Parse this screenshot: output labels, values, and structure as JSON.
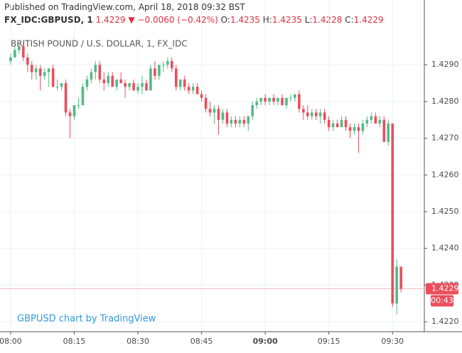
{
  "chart_data": {
    "type": "candlestick",
    "published": "Published on TradingView.com, April 18, 2018 09:32 BST",
    "symbol": "FX_IDC:GBPUSD, 1",
    "last_price": 1.4229,
    "change_arrow": "▼",
    "change": "−0.0060 (−0.42%)",
    "ohlc_labels": [
      "O:",
      "H:",
      "L:",
      "C:"
    ],
    "ohlc_values": [
      1.4235,
      1.4235,
      1.4228,
      1.4229
    ],
    "title": "BRITISH POUND / U.S. DOLLAR, 1, FX_IDC",
    "watermark": "GBPUSD chart by TradingView",
    "countdown": "00:43",
    "up_color": "#53b987",
    "down_color": "#eb4d5c",
    "last_line_color": "#f5b8bf",
    "grid": true,
    "xlim": [
      -2.5,
      97.5
    ],
    "xticks": [
      {
        "value": 0,
        "label": "08:00"
      },
      {
        "value": 15,
        "label": "08:15"
      },
      {
        "value": 30,
        "label": "08:30"
      },
      {
        "value": 45,
        "label": "08:45"
      },
      {
        "value": 60,
        "label": "09:00"
      },
      {
        "value": 75,
        "label": "09:15"
      },
      {
        "value": 90,
        "label": "09:30"
      }
    ],
    "ylim": [
      1.42173,
      1.43003
    ],
    "yticks": [
      {
        "value": 1.422,
        "label": "1.4220"
      },
      {
        "value": 1.423,
        "label": "1.4230"
      },
      {
        "value": 1.424,
        "label": "1.4240"
      },
      {
        "value": 1.425,
        "label": "1.4250"
      },
      {
        "value": 1.426,
        "label": "1.4260"
      },
      {
        "value": 1.427,
        "label": "1.4270"
      },
      {
        "value": 1.428,
        "label": "1.4280"
      },
      {
        "value": 1.429,
        "label": "1.4290"
      }
    ],
    "x": [
      0,
      1,
      2,
      3,
      4,
      5,
      6,
      7,
      8,
      9,
      10,
      11,
      12,
      13,
      14,
      15,
      16,
      17,
      18,
      19,
      20,
      21,
      22,
      23,
      24,
      25,
      26,
      27,
      28,
      29,
      30,
      31,
      32,
      33,
      34,
      35,
      36,
      37,
      38,
      39,
      40,
      41,
      42,
      43,
      44,
      45,
      46,
      47,
      48,
      49,
      50,
      51,
      52,
      53,
      54,
      55,
      56,
      57,
      58,
      59,
      60,
      61,
      62,
      63,
      64,
      65,
      66,
      67,
      68,
      69,
      70,
      71,
      72,
      73,
      74,
      75,
      76,
      77,
      78,
      79,
      80,
      81,
      82,
      83,
      84,
      85,
      86,
      87,
      88,
      89,
      90,
      91,
      92
    ],
    "candles": [
      [
        1.4291,
        1.4293,
        1.429,
        1.4292
      ],
      [
        1.4292,
        1.4295,
        1.4292,
        1.4294
      ],
      [
        1.4294,
        1.4296,
        1.4293,
        1.4295
      ],
      [
        1.4295,
        1.4296,
        1.4291,
        1.4292
      ],
      [
        1.4292,
        1.4293,
        1.4288,
        1.429
      ],
      [
        1.429,
        1.4291,
        1.4286,
        1.4288
      ],
      [
        1.4288,
        1.429,
        1.4286,
        1.4289
      ],
      [
        1.4289,
        1.429,
        1.4283,
        1.4287
      ],
      [
        1.4287,
        1.4289,
        1.4286,
        1.4288
      ],
      [
        1.4288,
        1.4289,
        1.4284,
        1.4289
      ],
      [
        1.4289,
        1.429,
        1.4284,
        1.4284
      ],
      [
        1.4284,
        1.4286,
        1.4283,
        1.4284
      ],
      [
        1.4284,
        1.4285,
        1.4283,
        1.4285
      ],
      [
        1.4285,
        1.4286,
        1.4276,
        1.4277
      ],
      [
        1.4277,
        1.4278,
        1.427,
        1.4276
      ],
      [
        1.4276,
        1.4279,
        1.4275,
        1.4279
      ],
      [
        1.4279,
        1.4281,
        1.4278,
        1.4279
      ],
      [
        1.4279,
        1.4285,
        1.4279,
        1.4284
      ],
      [
        1.4284,
        1.4287,
        1.4283,
        1.4286
      ],
      [
        1.4286,
        1.4289,
        1.4285,
        1.4288
      ],
      [
        1.4288,
        1.4291,
        1.4286,
        1.429
      ],
      [
        1.429,
        1.4291,
        1.4285,
        1.4286
      ],
      [
        1.4286,
        1.4288,
        1.4283,
        1.4285
      ],
      [
        1.4285,
        1.4288,
        1.4284,
        1.4287
      ],
      [
        1.4287,
        1.4288,
        1.4284,
        1.4284
      ],
      [
        1.4284,
        1.4286,
        1.4283,
        1.4286
      ],
      [
        1.4286,
        1.4288,
        1.4285,
        1.4285
      ],
      [
        1.4285,
        1.4286,
        1.4281,
        1.4284
      ],
      [
        1.4284,
        1.4285,
        1.4283,
        1.4285
      ],
      [
        1.4285,
        1.4286,
        1.4283,
        1.4283
      ],
      [
        1.4283,
        1.4285,
        1.4282,
        1.4284
      ],
      [
        1.4284,
        1.4287,
        1.4282,
        1.4285
      ],
      [
        1.4285,
        1.4286,
        1.4283,
        1.4283
      ],
      [
        1.4283,
        1.429,
        1.4283,
        1.4289
      ],
      [
        1.4289,
        1.4291,
        1.4286,
        1.4287
      ],
      [
        1.4287,
        1.429,
        1.4286,
        1.429
      ],
      [
        1.429,
        1.4291,
        1.4288,
        1.429
      ],
      [
        1.429,
        1.4292,
        1.4289,
        1.4291
      ],
      [
        1.4291,
        1.4292,
        1.4288,
        1.4289
      ],
      [
        1.4289,
        1.429,
        1.4283,
        1.4284
      ],
      [
        1.4284,
        1.4286,
        1.4283,
        1.4286
      ],
      [
        1.4286,
        1.4287,
        1.4283,
        1.4284
      ],
      [
        1.4284,
        1.4285,
        1.4282,
        1.4283
      ],
      [
        1.4283,
        1.4285,
        1.4282,
        1.4284
      ],
      [
        1.4284,
        1.4285,
        1.4282,
        1.4282
      ],
      [
        1.4282,
        1.4283,
        1.428,
        1.4281
      ],
      [
        1.4281,
        1.4282,
        1.4277,
        1.4278
      ],
      [
        1.4278,
        1.428,
        1.4276,
        1.4277
      ],
      [
        1.4277,
        1.4279,
        1.4274,
        1.4278
      ],
      [
        1.4278,
        1.4279,
        1.4271,
        1.4275
      ],
      [
        1.4275,
        1.4278,
        1.4274,
        1.4277
      ],
      [
        1.4277,
        1.4278,
        1.4273,
        1.4274
      ],
      [
        1.4274,
        1.4276,
        1.4273,
        1.4275
      ],
      [
        1.4275,
        1.4276,
        1.4273,
        1.4274
      ],
      [
        1.4274,
        1.4276,
        1.4273,
        1.4275
      ],
      [
        1.4275,
        1.4276,
        1.4273,
        1.4274
      ],
      [
        1.4274,
        1.4276,
        1.4272,
        1.4276
      ],
      [
        1.4276,
        1.428,
        1.4275,
        1.4279
      ],
      [
        1.4279,
        1.4281,
        1.4278,
        1.428
      ],
      [
        1.428,
        1.4281,
        1.4279,
        1.4281
      ],
      [
        1.4281,
        1.4282,
        1.4279,
        1.428
      ],
      [
        1.428,
        1.4281,
        1.4279,
        1.4281
      ],
      [
        1.4281,
        1.4282,
        1.4279,
        1.428
      ],
      [
        1.428,
        1.4281,
        1.4279,
        1.4281
      ],
      [
        1.4281,
        1.4282,
        1.4279,
        1.4279
      ],
      [
        1.4279,
        1.4281,
        1.4278,
        1.4281
      ],
      [
        1.4281,
        1.4282,
        1.428,
        1.4281
      ],
      [
        1.4281,
        1.4282,
        1.428,
        1.4282
      ],
      [
        1.4282,
        1.4283,
        1.4277,
        1.4278
      ],
      [
        1.4278,
        1.4279,
        1.4275,
        1.4277
      ],
      [
        1.4277,
        1.4279,
        1.4275,
        1.4276
      ],
      [
        1.4276,
        1.4278,
        1.4275,
        1.4277
      ],
      [
        1.4277,
        1.4278,
        1.4275,
        1.4276
      ],
      [
        1.4276,
        1.4278,
        1.4274,
        1.4277
      ],
      [
        1.4277,
        1.4278,
        1.4274,
        1.4275
      ],
      [
        1.4275,
        1.4276,
        1.4272,
        1.4273
      ],
      [
        1.4273,
        1.4275,
        1.4272,
        1.4274
      ],
      [
        1.4274,
        1.4275,
        1.4273,
        1.4273
      ],
      [
        1.4273,
        1.4276,
        1.4273,
        1.4275
      ],
      [
        1.4275,
        1.4276,
        1.4272,
        1.4273
      ],
      [
        1.4273,
        1.4274,
        1.427,
        1.4272
      ],
      [
        1.4272,
        1.4274,
        1.4271,
        1.4273
      ],
      [
        1.4273,
        1.4274,
        1.4266,
        1.4272
      ],
      [
        1.4272,
        1.4275,
        1.4271,
        1.4274
      ],
      [
        1.4274,
        1.4276,
        1.4273,
        1.4275
      ],
      [
        1.4275,
        1.4277,
        1.4274,
        1.4276
      ],
      [
        1.4276,
        1.4277,
        1.4274,
        1.4274
      ],
      [
        1.4274,
        1.4276,
        1.4273,
        1.4275
      ],
      [
        1.4275,
        1.4276,
        1.4269,
        1.4269
      ],
      [
        1.4269,
        1.4275,
        1.4268,
        1.4274
      ],
      [
        1.4274,
        1.4274,
        1.4224,
        1.4225
      ],
      [
        1.4225,
        1.4237,
        1.4222,
        1.4235
      ],
      [
        1.4235,
        1.4235,
        1.4228,
        1.4229
      ]
    ]
  }
}
